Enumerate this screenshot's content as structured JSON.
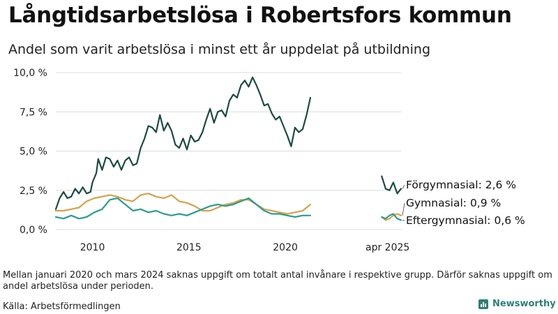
{
  "header": {
    "title": "Långtidsarbetslösa i Robertsfors kommun",
    "subtitle": "Andel som varit arbetslösa i minst ett år uppdelat på utbildning"
  },
  "footer": {
    "note": "Mellan januari 2020 och mars 2024 saknas uppgift om totalt antal invånare i respektive grupp. Därför saknas uppgift om andel arbetslösa under perioden.",
    "source": "Källa: Arbetsförmedlingen",
    "brand": "Newsworthy"
  },
  "colors": {
    "forgymnasial": "#1c4a44",
    "gymnasial": "#d6a24c",
    "eftergymnasial": "#2a9d8f",
    "grid": "#dcdcdc",
    "brand": "#2e7f79"
  },
  "chart_data": {
    "type": "line",
    "ylim": [
      0,
      10
    ],
    "yticks": [
      "0,0 %",
      "2,5 %",
      "5,0 %",
      "7,5 %",
      "10,0 %"
    ],
    "xticks": [
      "2010",
      "2015",
      "2020",
      "apr 2025"
    ],
    "grid": "horizontal",
    "legend": "direct labels at right end of series",
    "series": [
      {
        "name": "Förgymnasial",
        "end_label": "Förgymnasial: 2,6 %",
        "color": "#1c4a44",
        "segments": [
          [
            [
              2008.1,
              1.3
            ],
            [
              2008.3,
              2.0
            ],
            [
              2008.5,
              2.4
            ],
            [
              2008.7,
              2.0
            ],
            [
              2008.9,
              2.1
            ],
            [
              2009.1,
              2.6
            ],
            [
              2009.3,
              2.3
            ],
            [
              2009.5,
              2.7
            ],
            [
              2009.7,
              2.3
            ],
            [
              2009.9,
              2.4
            ],
            [
              2010.0,
              3.0
            ],
            [
              2010.2,
              3.6
            ],
            [
              2010.3,
              4.5
            ],
            [
              2010.5,
              3.8
            ],
            [
              2010.7,
              4.6
            ],
            [
              2010.9,
              4.5
            ],
            [
              2011.1,
              4.0
            ],
            [
              2011.3,
              4.4
            ],
            [
              2011.5,
              3.8
            ],
            [
              2011.7,
              4.4
            ],
            [
              2011.9,
              4.6
            ],
            [
              2012.1,
              4.1
            ],
            [
              2012.3,
              4.2
            ],
            [
              2012.5,
              5.2
            ],
            [
              2012.7,
              5.8
            ],
            [
              2012.9,
              6.6
            ],
            [
              2013.1,
              6.5
            ],
            [
              2013.3,
              6.2
            ],
            [
              2013.5,
              7.3
            ],
            [
              2013.7,
              6.3
            ],
            [
              2013.9,
              6.8
            ],
            [
              2014.1,
              6.3
            ],
            [
              2014.3,
              5.4
            ],
            [
              2014.5,
              5.2
            ],
            [
              2014.7,
              5.8
            ],
            [
              2014.9,
              5.1
            ],
            [
              2015.1,
              6.0
            ],
            [
              2015.3,
              5.6
            ],
            [
              2015.5,
              5.7
            ],
            [
              2015.7,
              6.2
            ],
            [
              2015.9,
              7.0
            ],
            [
              2016.1,
              7.7
            ],
            [
              2016.3,
              6.8
            ],
            [
              2016.5,
              7.5
            ],
            [
              2016.7,
              7.6
            ],
            [
              2016.9,
              7.2
            ],
            [
              2017.1,
              8.2
            ],
            [
              2017.3,
              8.6
            ],
            [
              2017.5,
              8.4
            ],
            [
              2017.7,
              9.2
            ],
            [
              2017.9,
              9.5
            ],
            [
              2018.1,
              9.1
            ],
            [
              2018.3,
              9.7
            ],
            [
              2018.5,
              9.2
            ],
            [
              2018.7,
              8.6
            ],
            [
              2018.9,
              7.9
            ],
            [
              2019.1,
              8.0
            ],
            [
              2019.3,
              7.4
            ],
            [
              2019.5,
              7.0
            ],
            [
              2019.7,
              7.2
            ],
            [
              2019.9,
              6.6
            ],
            [
              2020.1,
              6.0
            ],
            [
              2020.3,
              5.3
            ],
            [
              2020.5,
              6.5
            ],
            [
              2020.7,
              6.2
            ],
            [
              2020.9,
              6.4
            ],
            [
              2021.1,
              7.3
            ],
            [
              2021.3,
              8.4
            ]
          ],
          [
            [
              2025.0,
              3.4
            ],
            [
              2025.2,
              2.6
            ],
            [
              2025.4,
              2.5
            ],
            [
              2025.6,
              3.0
            ],
            [
              2025.8,
              2.3
            ],
            [
              2026.0,
              2.6
            ]
          ]
        ]
      },
      {
        "name": "Gymnasial",
        "end_label": "Gymnasial: 0,9 %",
        "color": "#d6a24c",
        "segments": [
          [
            [
              2008.1,
              1.2
            ],
            [
              2008.5,
              1.2
            ],
            [
              2008.9,
              1.3
            ],
            [
              2009.3,
              1.4
            ],
            [
              2009.7,
              1.8
            ],
            [
              2010.1,
              2.0
            ],
            [
              2010.5,
              2.1
            ],
            [
              2010.9,
              2.2
            ],
            [
              2011.3,
              2.1
            ],
            [
              2011.7,
              1.9
            ],
            [
              2012.1,
              1.8
            ],
            [
              2012.5,
              2.2
            ],
            [
              2012.9,
              2.3
            ],
            [
              2013.3,
              2.1
            ],
            [
              2013.7,
              2.0
            ],
            [
              2014.1,
              2.2
            ],
            [
              2014.5,
              1.8
            ],
            [
              2014.9,
              1.7
            ],
            [
              2015.3,
              1.5
            ],
            [
              2015.7,
              1.2
            ],
            [
              2016.1,
              1.2
            ],
            [
              2016.5,
              1.4
            ],
            [
              2016.9,
              1.6
            ],
            [
              2017.3,
              1.7
            ],
            [
              2017.7,
              1.9
            ],
            [
              2018.1,
              1.9
            ],
            [
              2018.5,
              1.6
            ],
            [
              2018.9,
              1.3
            ],
            [
              2019.3,
              1.2
            ],
            [
              2019.7,
              1.1
            ],
            [
              2020.1,
              1.0
            ],
            [
              2020.5,
              1.1
            ],
            [
              2020.9,
              1.2
            ],
            [
              2021.3,
              1.6
            ]
          ],
          [
            [
              2025.0,
              0.8
            ],
            [
              2025.2,
              0.6
            ],
            [
              2025.4,
              0.7
            ],
            [
              2025.6,
              0.9
            ],
            [
              2025.8,
              1.0
            ],
            [
              2026.0,
              0.9
            ]
          ]
        ]
      },
      {
        "name": "Eftergymnasial",
        "end_label": "Eftergymnasial: 0,6 %",
        "color": "#2a9d8f",
        "segments": [
          [
            [
              2008.1,
              0.8
            ],
            [
              2008.5,
              0.7
            ],
            [
              2008.9,
              0.9
            ],
            [
              2009.3,
              0.7
            ],
            [
              2009.7,
              0.8
            ],
            [
              2010.1,
              1.1
            ],
            [
              2010.5,
              1.3
            ],
            [
              2010.9,
              1.9
            ],
            [
              2011.3,
              2.0
            ],
            [
              2011.7,
              1.6
            ],
            [
              2012.1,
              1.2
            ],
            [
              2012.5,
              1.3
            ],
            [
              2012.9,
              1.1
            ],
            [
              2013.3,
              1.2
            ],
            [
              2013.7,
              1.0
            ],
            [
              2014.1,
              0.9
            ],
            [
              2014.5,
              1.0
            ],
            [
              2014.9,
              0.9
            ],
            [
              2015.3,
              1.1
            ],
            [
              2015.7,
              1.3
            ],
            [
              2016.1,
              1.5
            ],
            [
              2016.5,
              1.6
            ],
            [
              2016.9,
              1.5
            ],
            [
              2017.3,
              1.6
            ],
            [
              2017.7,
              1.8
            ],
            [
              2018.1,
              2.0
            ],
            [
              2018.5,
              1.6
            ],
            [
              2018.9,
              1.2
            ],
            [
              2019.3,
              1.0
            ],
            [
              2019.7,
              1.0
            ],
            [
              2020.1,
              0.9
            ],
            [
              2020.5,
              0.8
            ],
            [
              2020.9,
              0.9
            ],
            [
              2021.3,
              0.9
            ]
          ],
          [
            [
              2025.0,
              0.8
            ],
            [
              2025.2,
              0.7
            ],
            [
              2025.4,
              0.9
            ],
            [
              2025.6,
              1.0
            ],
            [
              2025.8,
              0.7
            ],
            [
              2026.0,
              0.6
            ]
          ]
        ]
      }
    ]
  }
}
